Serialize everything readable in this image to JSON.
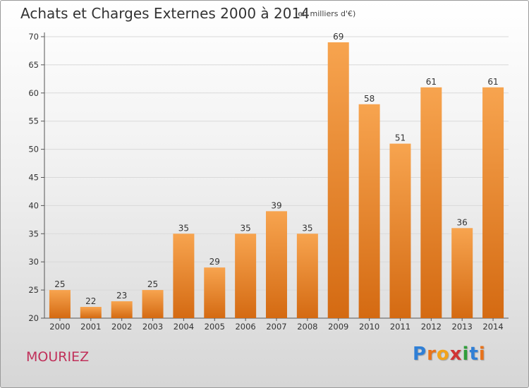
{
  "header": {
    "title": "Achats et Charges Externes 2000 à 2014",
    "unit": "(en milliers d'€)"
  },
  "commune": "MOURIEZ",
  "logo": {
    "text": "Proxiti",
    "letter_colors": [
      "#2f7fd6",
      "#e8731c",
      "#f2a31b",
      "#d03434",
      "#2f9e3a",
      "#2f7fd6",
      "#e8731c"
    ]
  },
  "colors": {
    "bar_light": "#f7a44f",
    "bar_dark": "#d46a12",
    "grid": "#d9d9d9",
    "axis": "#555555"
  },
  "chart_data": {
    "type": "bar",
    "title": "Achats et Charges Externes 2000 à 2014",
    "subtitle": "(en milliers d'€)",
    "categories": [
      "2000",
      "2001",
      "2002",
      "2003",
      "2004",
      "2005",
      "2006",
      "2007",
      "2008",
      "2009",
      "2010",
      "2011",
      "2012",
      "2013",
      "2014"
    ],
    "values": [
      25,
      22,
      23,
      25,
      35,
      29,
      35,
      39,
      35,
      69,
      58,
      51,
      61,
      36,
      61
    ],
    "ylim": [
      20,
      70
    ],
    "yticks": [
      20,
      25,
      30,
      35,
      40,
      45,
      50,
      55,
      60,
      65,
      70
    ],
    "grid": true,
    "xlabel": "",
    "ylabel": ""
  }
}
